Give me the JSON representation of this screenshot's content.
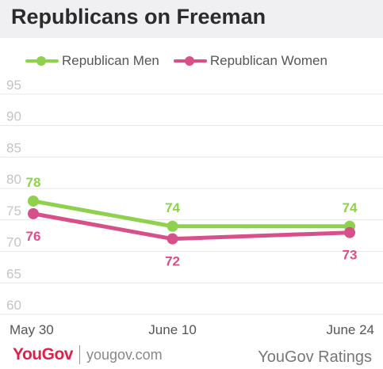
{
  "header": {
    "title": "Republicans on Freeman"
  },
  "chart_data": {
    "type": "line",
    "title": "Republicans on Freeman",
    "categories": [
      "May 30",
      "June 10",
      "June 24"
    ],
    "x_positions": [
      0,
      11,
      25
    ],
    "series": [
      {
        "name": "Republican Men",
        "values": [
          78,
          74,
          74
        ],
        "color": "#8fd14f",
        "label_position": "above"
      },
      {
        "name": "Republican Women",
        "values": [
          76,
          72,
          73
        ],
        "color": "#d6508a",
        "label_position": "below"
      }
    ],
    "yticks": [
      60,
      65,
      70,
      75,
      80,
      85,
      90,
      95
    ],
    "ylim": [
      60,
      97
    ],
    "grid": true,
    "legend_position": "top-left"
  },
  "footer": {
    "brand": "YouGov",
    "url": "yougov.com",
    "source": "YouGov Ratings"
  }
}
